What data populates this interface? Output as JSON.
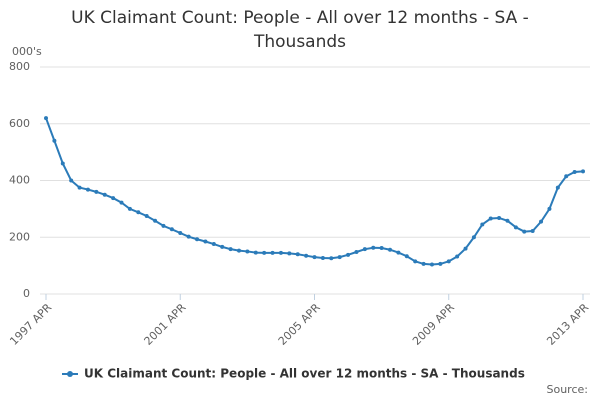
{
  "chart_data": {
    "type": "line",
    "title": "UK Claimant Count: People - All over 12 months - SA - Thousands",
    "y_label": "000's",
    "source": "Source:",
    "categories": [
      "1997 APR",
      null,
      null,
      null,
      null,
      null,
      null,
      null,
      null,
      null,
      null,
      null,
      null,
      null,
      null,
      null,
      "2001 APR",
      null,
      null,
      null,
      null,
      null,
      null,
      null,
      null,
      null,
      null,
      null,
      null,
      null,
      null,
      null,
      "2005 APR",
      null,
      null,
      null,
      null,
      null,
      null,
      null,
      null,
      null,
      null,
      null,
      null,
      null,
      null,
      null,
      "2009 APR",
      null,
      null,
      null,
      null,
      null,
      null,
      null,
      null,
      null,
      null,
      null,
      null,
      null,
      null,
      null,
      "2013 APR"
    ],
    "series": [
      {
        "name": "UK Claimant Count: People - All over 12 months - SA - Thousands",
        "color": "#2b7bb9",
        "values": [
          620,
          540,
          460,
          400,
          375,
          368,
          360,
          350,
          338,
          322,
          300,
          288,
          275,
          258,
          240,
          228,
          215,
          202,
          193,
          185,
          176,
          166,
          158,
          153,
          150,
          146,
          145,
          145,
          145,
          143,
          140,
          135,
          130,
          127,
          126,
          130,
          138,
          148,
          158,
          163,
          162,
          156,
          146,
          133,
          115,
          106,
          104,
          106,
          115,
          132,
          160,
          200,
          245,
          266,
          268,
          258,
          235,
          220,
          222,
          255,
          300,
          375,
          415,
          430,
          432
        ]
      }
    ],
    "ylim": [
      0,
      800
    ],
    "yticks": [
      0,
      200,
      400,
      600,
      800
    ],
    "grid": true,
    "legend": "bottom"
  }
}
